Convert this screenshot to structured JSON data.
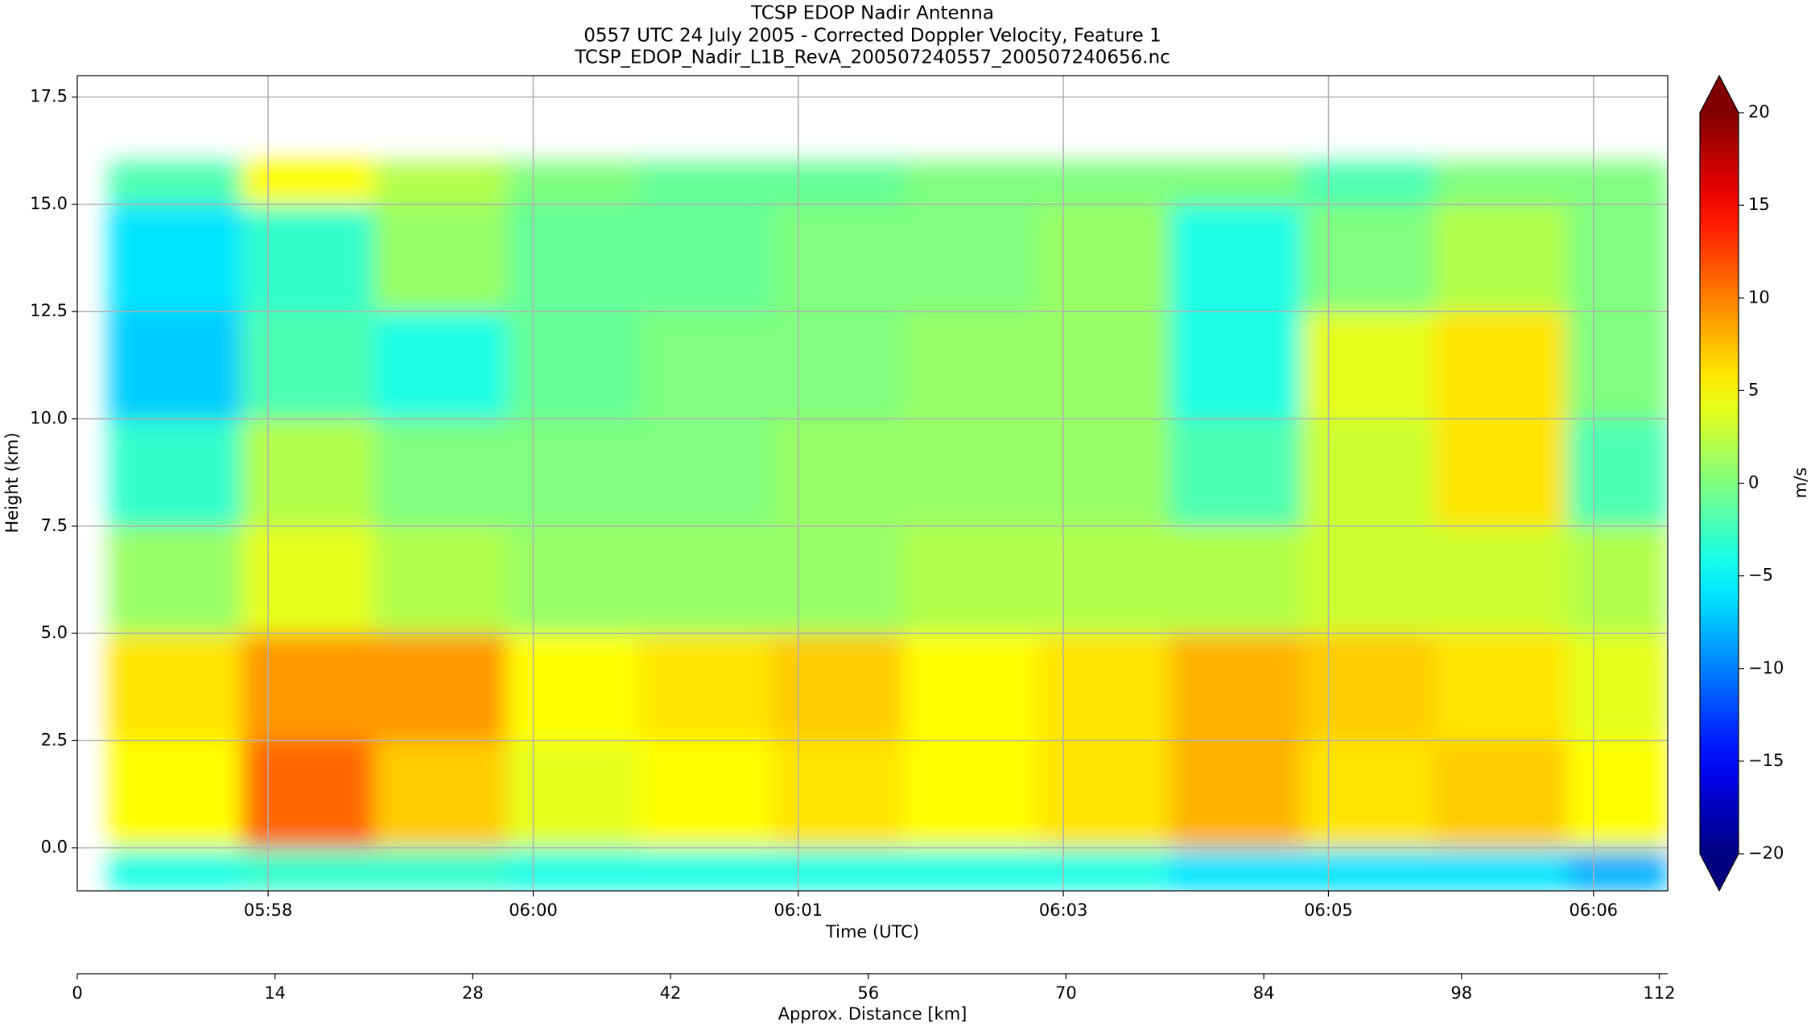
{
  "chart_data": {
    "type": "heatmap",
    "title": [
      "TCSP EDOP Nadir Antenna",
      "0557 UTC 24 July 2005 - Corrected Doppler Velocity, Feature 1",
      "TCSP_EDOP_Nadir_L1B_RevA_200507240557_200507240656.nc"
    ],
    "xlabel": "Time (UTC)",
    "ylabel": "Height (km)",
    "x2label": "Approx. Distance [km]",
    "colorbar_label": "m/s",
    "colormap": "jet",
    "xlim": [
      21428,
      22028
    ],
    "xticks": [
      {
        "value": 21500,
        "label": "05:58"
      },
      {
        "value": 21600,
        "label": "06:00"
      },
      {
        "value": 21700,
        "label": "06:01"
      },
      {
        "value": 21800,
        "label": "06:03"
      },
      {
        "value": 21900,
        "label": "06:05"
      },
      {
        "value": 22000,
        "label": "06:06"
      }
    ],
    "x2lim": [
      0,
      112.6
    ],
    "x2ticks": [
      0,
      14,
      28,
      42,
      56,
      70,
      84,
      98,
      112
    ],
    "ylim": [
      -1,
      18
    ],
    "yticks": [
      {
        "value": 0,
        "label": "0.0"
      },
      2.5,
      {
        "value": 5,
        "label": "5.0"
      },
      7.5,
      {
        "value": 10,
        "label": "10.0"
      },
      12.5,
      {
        "value": 15,
        "label": "15.0"
      },
      17.5
    ],
    "clim": [
      -20,
      20
    ],
    "cticks": [
      {
        "value": -20,
        "label": "−20"
      },
      {
        "value": -15,
        "label": "−15"
      },
      {
        "value": -10,
        "label": "−10"
      },
      {
        "value": -5,
        "label": "−5"
      },
      0,
      5,
      10,
      15,
      20
    ],
    "grid": true,
    "x_edges": [
      21440,
      21490,
      21540,
      21590,
      21640,
      21690,
      21740,
      21790,
      21840,
      21890,
      21940,
      21990,
      22028
    ],
    "y_edges": [
      -1,
      0,
      2.5,
      5,
      7.5,
      10,
      12.5,
      15,
      16
    ],
    "z": [
      [
        -4,
        -3,
        -3,
        -4,
        -4,
        -4,
        -4,
        -4,
        -6,
        -6,
        -6,
        -8
      ],
      [
        5,
        11,
        7,
        4,
        5,
        6,
        5,
        6,
        8,
        6,
        7,
        5
      ],
      [
        6,
        9,
        9,
        5,
        6,
        7,
        5,
        6,
        8,
        7,
        6,
        4
      ],
      [
        1,
        4,
        2,
        1,
        1,
        1,
        2,
        2,
        2,
        3,
        3,
        2
      ],
      [
        -3,
        2,
        0,
        0,
        0,
        1,
        1,
        1,
        -2,
        3,
        6,
        -2
      ],
      [
        -7,
        -2,
        -4,
        -1,
        0,
        0,
        1,
        1,
        -4,
        4,
        6,
        0
      ],
      [
        -6,
        -3,
        1,
        -1,
        -1,
        0,
        0,
        1,
        -4,
        0,
        2,
        0
      ],
      [
        -2,
        5,
        2,
        0,
        -1,
        -1,
        0,
        0,
        0,
        -2,
        0,
        0
      ]
    ]
  }
}
